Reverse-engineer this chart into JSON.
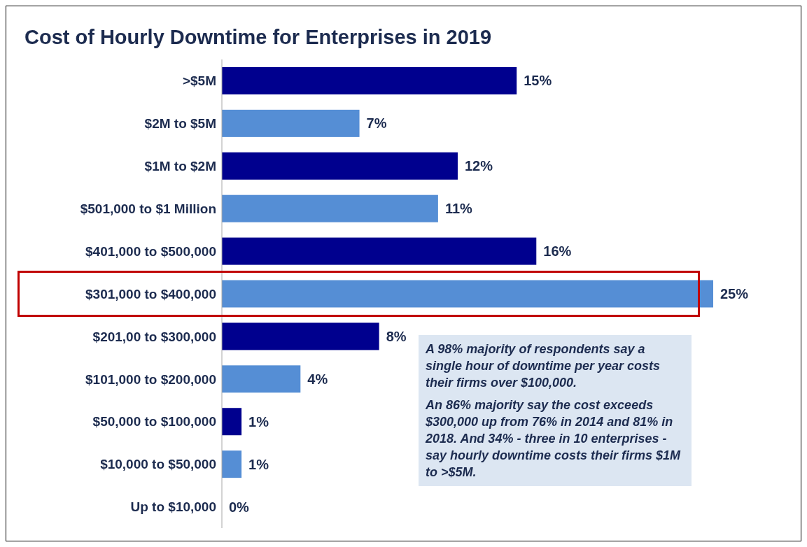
{
  "chart_data": {
    "type": "bar",
    "orientation": "horizontal",
    "title": "Cost of Hourly Downtime for Enterprises in 2019",
    "categories": [
      ">$5M",
      "$2M to $5M",
      "$1M to $2M",
      "$501,000 to $1 Million",
      "$401,000 to $500,000",
      "$301,000 to $400,000",
      "$201,00 to $300,000",
      "$101,000 to $200,000",
      "$50,000 to $100,000",
      "$10,000 to $50,000",
      "Up to $10,000"
    ],
    "values": [
      15,
      7,
      12,
      11,
      16,
      25,
      8,
      4,
      1,
      1,
      0
    ],
    "value_labels": [
      "15%",
      "7%",
      "12%",
      "11%",
      "16%",
      "25%",
      "8%",
      "4%",
      "1%",
      "1%",
      "0%"
    ],
    "colors": [
      "#00008e",
      "#558ed5",
      "#00008e",
      "#558ed5",
      "#00008e",
      "#558ed5",
      "#00008e",
      "#558ed5",
      "#00008e",
      "#558ed5",
      "#00008e"
    ],
    "annotations": [
      "A 98% majority of respondents say a single hour of downtime per year costs their firms over $100,000.",
      "An 86% majority say the cost exceeds $300,000  up from 76% in 2014 and 81% in 2018. And  34%  - three in 10 enterprises - say hourly downtime costs their firms $1M to >$5M."
    ],
    "grid": false,
    "legend": false
  }
}
